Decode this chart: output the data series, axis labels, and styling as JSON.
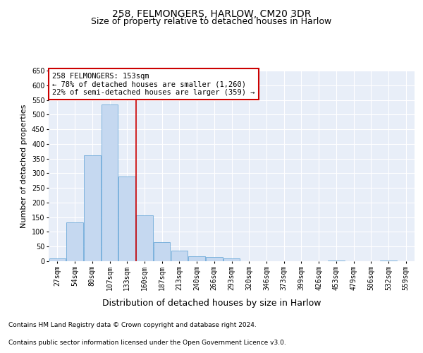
{
  "title": "258, FELMONGERS, HARLOW, CM20 3DR",
  "subtitle": "Size of property relative to detached houses in Harlow",
  "xlabel": "Distribution of detached houses by size in Harlow",
  "ylabel": "Number of detached properties",
  "categories": [
    "27sqm",
    "54sqm",
    "80sqm",
    "107sqm",
    "133sqm",
    "160sqm",
    "187sqm",
    "213sqm",
    "240sqm",
    "266sqm",
    "293sqm",
    "320sqm",
    "346sqm",
    "373sqm",
    "399sqm",
    "426sqm",
    "453sqm",
    "479sqm",
    "506sqm",
    "532sqm",
    "559sqm"
  ],
  "values": [
    9,
    133,
    360,
    535,
    290,
    157,
    65,
    37,
    18,
    14,
    10,
    0,
    0,
    0,
    0,
    0,
    3,
    0,
    0,
    3,
    0
  ],
  "bar_color": "#c5d8f0",
  "bar_edge_color": "#5a9fd4",
  "background_color": "#e8eef8",
  "grid_color": "#ffffff",
  "annotation_text": "258 FELMONGERS: 153sqm\n← 78% of detached houses are smaller (1,260)\n22% of semi-detached houses are larger (359) →",
  "annotation_box_color": "#ffffff",
  "annotation_box_edge": "#cc0000",
  "property_line_x": 4.5,
  "property_line_color": "#cc0000",
  "ylim": [
    0,
    650
  ],
  "yticks": [
    0,
    50,
    100,
    150,
    200,
    250,
    300,
    350,
    400,
    450,
    500,
    550,
    600,
    650
  ],
  "footer1": "Contains HM Land Registry data © Crown copyright and database right 2024.",
  "footer2": "Contains public sector information licensed under the Open Government Licence v3.0.",
  "title_fontsize": 10,
  "subtitle_fontsize": 9,
  "xlabel_fontsize": 9,
  "ylabel_fontsize": 8,
  "tick_fontsize": 7,
  "footer_fontsize": 6.5,
  "ann_fontsize": 7.5
}
